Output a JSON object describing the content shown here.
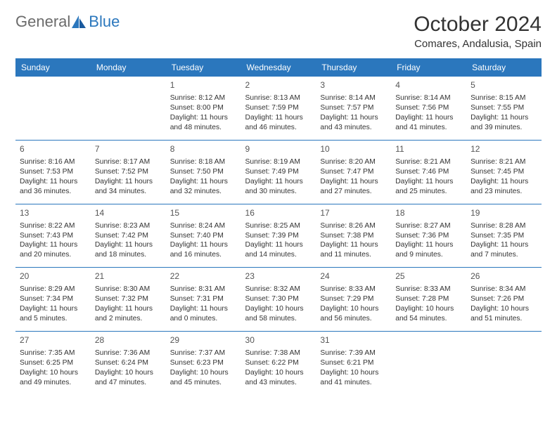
{
  "logo": {
    "part1": "General",
    "part2": "Blue"
  },
  "title": "October 2024",
  "subtitle": "Comares, Andalusia, Spain",
  "colors": {
    "accent": "#2b77bd",
    "text": "#333333",
    "muted": "#6b6b6b",
    "bg": "#ffffff"
  },
  "fonts": {
    "title_size": 30,
    "subtitle_size": 15,
    "header_size": 12,
    "cell_size": 10.3,
    "daynum_size": 12
  },
  "headers": [
    "Sunday",
    "Monday",
    "Tuesday",
    "Wednesday",
    "Thursday",
    "Friday",
    "Saturday"
  ],
  "weeks": [
    [
      null,
      null,
      {
        "n": "1",
        "sr": "Sunrise: 8:12 AM",
        "ss": "Sunset: 8:00 PM",
        "d1": "Daylight: 11 hours",
        "d2": "and 48 minutes."
      },
      {
        "n": "2",
        "sr": "Sunrise: 8:13 AM",
        "ss": "Sunset: 7:59 PM",
        "d1": "Daylight: 11 hours",
        "d2": "and 46 minutes."
      },
      {
        "n": "3",
        "sr": "Sunrise: 8:14 AM",
        "ss": "Sunset: 7:57 PM",
        "d1": "Daylight: 11 hours",
        "d2": "and 43 minutes."
      },
      {
        "n": "4",
        "sr": "Sunrise: 8:14 AM",
        "ss": "Sunset: 7:56 PM",
        "d1": "Daylight: 11 hours",
        "d2": "and 41 minutes."
      },
      {
        "n": "5",
        "sr": "Sunrise: 8:15 AM",
        "ss": "Sunset: 7:55 PM",
        "d1": "Daylight: 11 hours",
        "d2": "and 39 minutes."
      }
    ],
    [
      {
        "n": "6",
        "sr": "Sunrise: 8:16 AM",
        "ss": "Sunset: 7:53 PM",
        "d1": "Daylight: 11 hours",
        "d2": "and 36 minutes."
      },
      {
        "n": "7",
        "sr": "Sunrise: 8:17 AM",
        "ss": "Sunset: 7:52 PM",
        "d1": "Daylight: 11 hours",
        "d2": "and 34 minutes."
      },
      {
        "n": "8",
        "sr": "Sunrise: 8:18 AM",
        "ss": "Sunset: 7:50 PM",
        "d1": "Daylight: 11 hours",
        "d2": "and 32 minutes."
      },
      {
        "n": "9",
        "sr": "Sunrise: 8:19 AM",
        "ss": "Sunset: 7:49 PM",
        "d1": "Daylight: 11 hours",
        "d2": "and 30 minutes."
      },
      {
        "n": "10",
        "sr": "Sunrise: 8:20 AM",
        "ss": "Sunset: 7:47 PM",
        "d1": "Daylight: 11 hours",
        "d2": "and 27 minutes."
      },
      {
        "n": "11",
        "sr": "Sunrise: 8:21 AM",
        "ss": "Sunset: 7:46 PM",
        "d1": "Daylight: 11 hours",
        "d2": "and 25 minutes."
      },
      {
        "n": "12",
        "sr": "Sunrise: 8:21 AM",
        "ss": "Sunset: 7:45 PM",
        "d1": "Daylight: 11 hours",
        "d2": "and 23 minutes."
      }
    ],
    [
      {
        "n": "13",
        "sr": "Sunrise: 8:22 AM",
        "ss": "Sunset: 7:43 PM",
        "d1": "Daylight: 11 hours",
        "d2": "and 20 minutes."
      },
      {
        "n": "14",
        "sr": "Sunrise: 8:23 AM",
        "ss": "Sunset: 7:42 PM",
        "d1": "Daylight: 11 hours",
        "d2": "and 18 minutes."
      },
      {
        "n": "15",
        "sr": "Sunrise: 8:24 AM",
        "ss": "Sunset: 7:40 PM",
        "d1": "Daylight: 11 hours",
        "d2": "and 16 minutes."
      },
      {
        "n": "16",
        "sr": "Sunrise: 8:25 AM",
        "ss": "Sunset: 7:39 PM",
        "d1": "Daylight: 11 hours",
        "d2": "and 14 minutes."
      },
      {
        "n": "17",
        "sr": "Sunrise: 8:26 AM",
        "ss": "Sunset: 7:38 PM",
        "d1": "Daylight: 11 hours",
        "d2": "and 11 minutes."
      },
      {
        "n": "18",
        "sr": "Sunrise: 8:27 AM",
        "ss": "Sunset: 7:36 PM",
        "d1": "Daylight: 11 hours",
        "d2": "and 9 minutes."
      },
      {
        "n": "19",
        "sr": "Sunrise: 8:28 AM",
        "ss": "Sunset: 7:35 PM",
        "d1": "Daylight: 11 hours",
        "d2": "and 7 minutes."
      }
    ],
    [
      {
        "n": "20",
        "sr": "Sunrise: 8:29 AM",
        "ss": "Sunset: 7:34 PM",
        "d1": "Daylight: 11 hours",
        "d2": "and 5 minutes."
      },
      {
        "n": "21",
        "sr": "Sunrise: 8:30 AM",
        "ss": "Sunset: 7:32 PM",
        "d1": "Daylight: 11 hours",
        "d2": "and 2 minutes."
      },
      {
        "n": "22",
        "sr": "Sunrise: 8:31 AM",
        "ss": "Sunset: 7:31 PM",
        "d1": "Daylight: 11 hours",
        "d2": "and 0 minutes."
      },
      {
        "n": "23",
        "sr": "Sunrise: 8:32 AM",
        "ss": "Sunset: 7:30 PM",
        "d1": "Daylight: 10 hours",
        "d2": "and 58 minutes."
      },
      {
        "n": "24",
        "sr": "Sunrise: 8:33 AM",
        "ss": "Sunset: 7:29 PM",
        "d1": "Daylight: 10 hours",
        "d2": "and 56 minutes."
      },
      {
        "n": "25",
        "sr": "Sunrise: 8:33 AM",
        "ss": "Sunset: 7:28 PM",
        "d1": "Daylight: 10 hours",
        "d2": "and 54 minutes."
      },
      {
        "n": "26",
        "sr": "Sunrise: 8:34 AM",
        "ss": "Sunset: 7:26 PM",
        "d1": "Daylight: 10 hours",
        "d2": "and 51 minutes."
      }
    ],
    [
      {
        "n": "27",
        "sr": "Sunrise: 7:35 AM",
        "ss": "Sunset: 6:25 PM",
        "d1": "Daylight: 10 hours",
        "d2": "and 49 minutes."
      },
      {
        "n": "28",
        "sr": "Sunrise: 7:36 AM",
        "ss": "Sunset: 6:24 PM",
        "d1": "Daylight: 10 hours",
        "d2": "and 47 minutes."
      },
      {
        "n": "29",
        "sr": "Sunrise: 7:37 AM",
        "ss": "Sunset: 6:23 PM",
        "d1": "Daylight: 10 hours",
        "d2": "and 45 minutes."
      },
      {
        "n": "30",
        "sr": "Sunrise: 7:38 AM",
        "ss": "Sunset: 6:22 PM",
        "d1": "Daylight: 10 hours",
        "d2": "and 43 minutes."
      },
      {
        "n": "31",
        "sr": "Sunrise: 7:39 AM",
        "ss": "Sunset: 6:21 PM",
        "d1": "Daylight: 10 hours",
        "d2": "and 41 minutes."
      },
      null,
      null
    ]
  ]
}
